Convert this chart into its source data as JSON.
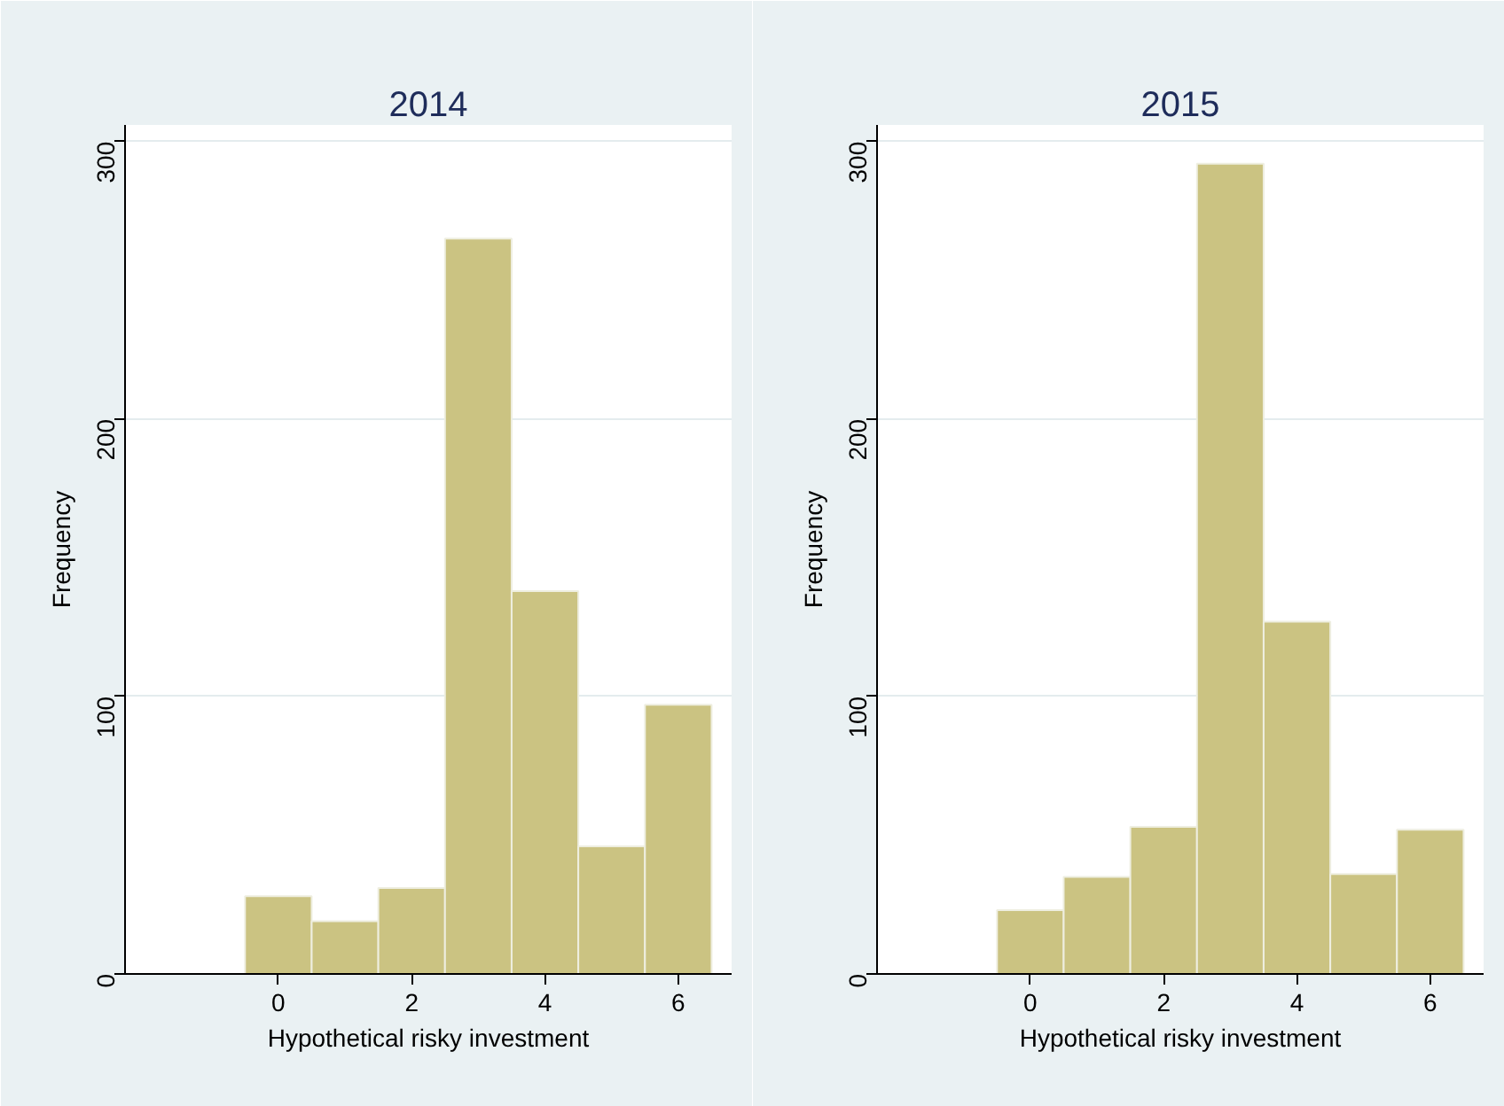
{
  "chart_data": [
    {
      "type": "histogram",
      "title": "2014",
      "xlabel": "Hypothetical risky investment",
      "ylabel": "Frequency",
      "bins": [
        -0.5,
        0.5,
        1.5,
        2.5,
        3.5,
        4.5,
        5.5,
        6.5
      ],
      "values": [
        28,
        19,
        31,
        265,
        138,
        46,
        97
      ],
      "color": "#cbc382",
      "xlim": [
        -2.3,
        6.8
      ],
      "ylim": [
        0,
        306
      ],
      "xticks": [
        0,
        2,
        4,
        6
      ],
      "yticks": [
        0,
        100,
        200,
        300
      ],
      "grid": "y"
    },
    {
      "type": "histogram",
      "title": "2015",
      "xlabel": "Hypothetical risky investment",
      "ylabel": "Frequency",
      "bins": [
        -0.5,
        0.5,
        1.5,
        2.5,
        3.5,
        4.5,
        5.5,
        6.5
      ],
      "values": [
        23,
        35,
        53,
        292,
        127,
        36,
        52
      ],
      "color": "#cbc382",
      "xlim": [
        -2.3,
        6.8
      ],
      "ylim": [
        0,
        306
      ],
      "xticks": [
        0,
        2,
        4,
        6
      ],
      "yticks": [
        0,
        100,
        200,
        300
      ],
      "grid": "y"
    }
  ]
}
